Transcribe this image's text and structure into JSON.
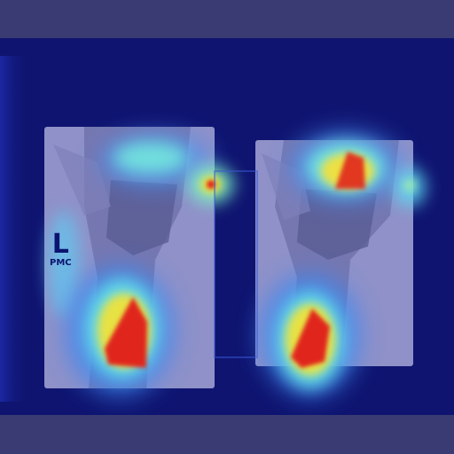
{
  "image": {
    "description_colors": {
      "frame_band": "#3b3b74",
      "background": "#0f1470",
      "film": "#8f91c8",
      "heat_hot": "#e0281e",
      "heat_warm": "#f2d23a",
      "heat_mid": "#7af0e0",
      "heat_cool": "#3a7ef0"
    }
  },
  "marker": {
    "letter": "L",
    "sub": "PMC"
  }
}
